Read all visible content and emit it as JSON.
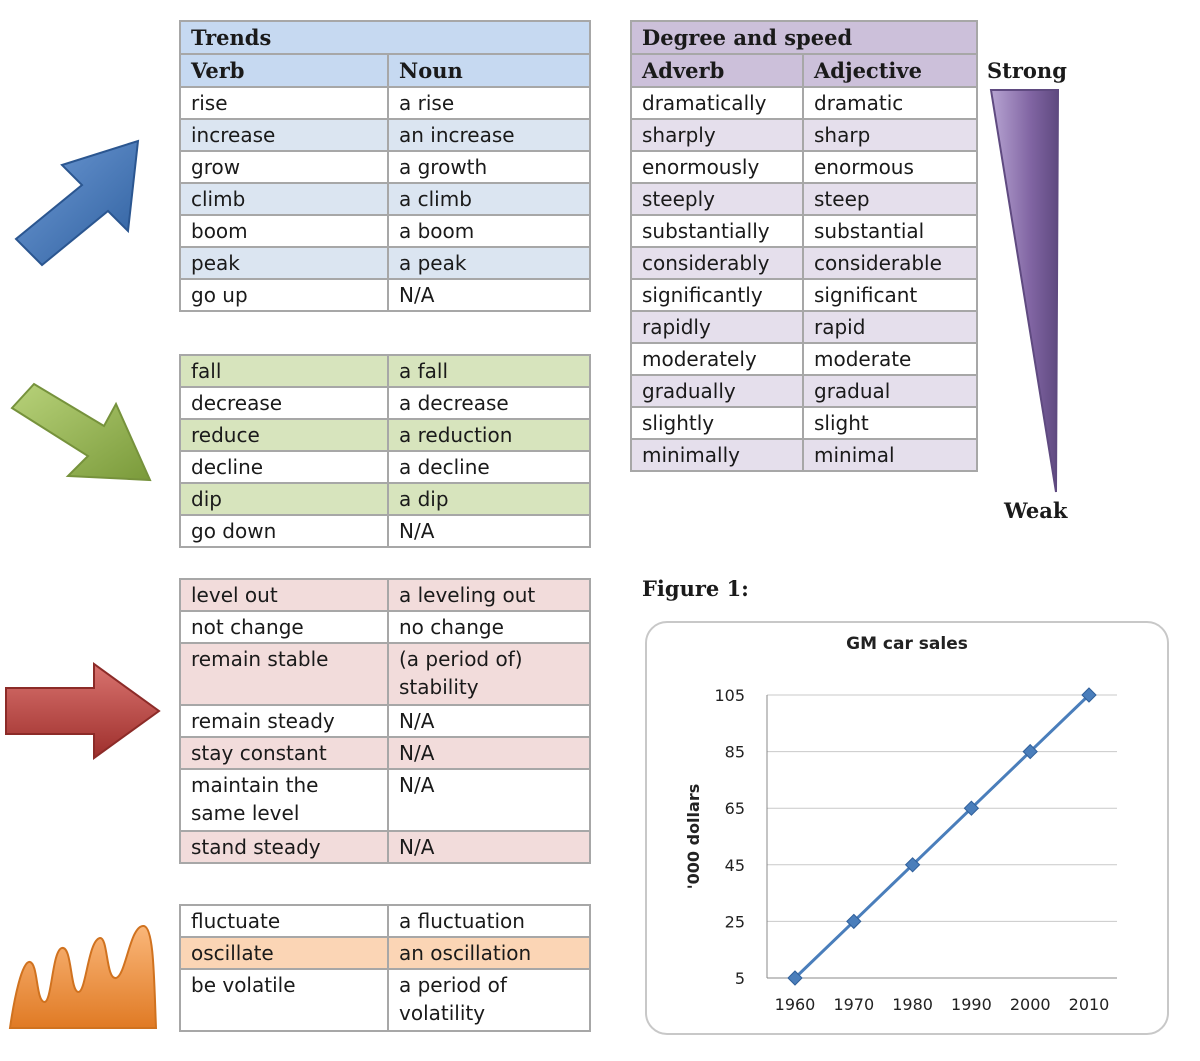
{
  "trends": {
    "title": "Trends",
    "headers": [
      "Verb",
      "Noun"
    ],
    "up": [
      [
        "rise",
        "a rise"
      ],
      [
        "increase",
        "an increase"
      ],
      [
        "grow",
        "a growth"
      ],
      [
        "climb",
        "a climb"
      ],
      [
        "boom",
        "a boom"
      ],
      [
        "peak",
        "a peak"
      ],
      [
        "go up",
        "N/A"
      ]
    ],
    "down": [
      [
        "fall",
        "a fall"
      ],
      [
        "decrease",
        "a decrease"
      ],
      [
        "reduce",
        "a reduction"
      ],
      [
        "decline",
        "a decline"
      ],
      [
        "dip",
        "a dip"
      ],
      [
        "go down",
        "N/A"
      ]
    ],
    "flat": [
      [
        "level out",
        "a leveling out"
      ],
      [
        "not change",
        "no change"
      ],
      [
        "remain stable",
        "(a period of) stability"
      ],
      [
        "remain steady",
        "N/A"
      ],
      [
        "stay constant",
        "N/A"
      ],
      [
        "maintain the same level",
        "N/A"
      ],
      [
        "stand steady",
        "N/A"
      ]
    ],
    "fluctuate": [
      [
        "fluctuate",
        "a fluctuation"
      ],
      [
        "oscillate",
        "an oscillation"
      ],
      [
        "be volatile",
        "a period of volatility"
      ]
    ]
  },
  "degree": {
    "title": "Degree and speed",
    "headers": [
      "Adverb",
      "Adjective"
    ],
    "rows": [
      [
        "dramatically",
        "dramatic"
      ],
      [
        "sharply",
        "sharp"
      ],
      [
        "enormously",
        "enormous"
      ],
      [
        "steeply",
        "steep"
      ],
      [
        "substantially",
        "substantial"
      ],
      [
        "considerably",
        "considerable"
      ],
      [
        "significantly",
        "significant"
      ],
      [
        "rapidly",
        "rapid"
      ],
      [
        "moderately",
        "moderate"
      ],
      [
        "gradually",
        "gradual"
      ],
      [
        "slightly",
        "slight"
      ],
      [
        "minimally",
        "minimal"
      ]
    ],
    "strong_label": "Strong",
    "weak_label": "Weak"
  },
  "icons": {
    "up": "up-arrow-icon",
    "down": "down-arrow-icon",
    "flat": "right-arrow-icon",
    "fluctuate": "wave-icon",
    "scale": "strength-wedge-icon"
  },
  "colors": {
    "blue_arrow": "#4f81bd",
    "green_arrow": "#9bbb59",
    "red_arrow": "#c0504d",
    "orange_wave": "#f79646",
    "purple_wedge": "#8064a2",
    "line": "#4a7ebb"
  },
  "figure_label": "Figure 1:",
  "chart_data": {
    "type": "line",
    "title": "GM car sales",
    "xlabel": "",
    "ylabel": "'000 dollars",
    "x": [
      1960,
      1970,
      1980,
      1990,
      2000,
      2010
    ],
    "series": [
      {
        "values": [
          5,
          25,
          45,
          65,
          85,
          105
        ]
      }
    ],
    "yticks": [
      5,
      25,
      45,
      65,
      85,
      105
    ],
    "ylim": [
      5,
      105
    ],
    "grid": true,
    "legend": "none",
    "marker": "diamond"
  }
}
